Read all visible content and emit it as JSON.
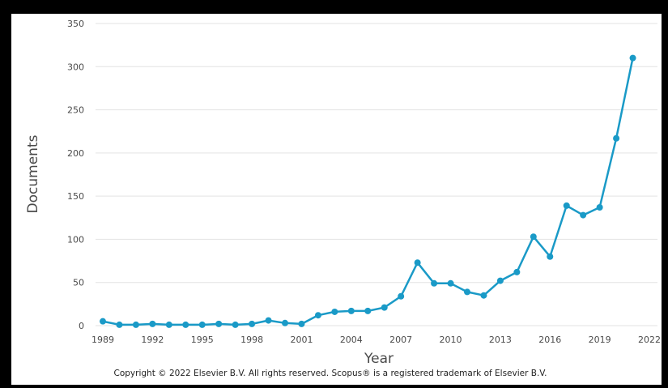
{
  "chart_data": {
    "type": "line",
    "title": "",
    "xlabel": "Year",
    "ylabel": "Documents",
    "xlim": [
      1989,
      2022
    ],
    "ylim": [
      0,
      350
    ],
    "x_ticks": [
      1989,
      1992,
      1995,
      1998,
      2001,
      2004,
      2007,
      2010,
      2013,
      2016,
      2019,
      2022
    ],
    "y_ticks": [
      0,
      50,
      100,
      150,
      200,
      250,
      300,
      350
    ],
    "grid": true,
    "legend": "none",
    "color": "#1a9ac7",
    "series": [
      {
        "x": [
          1989,
          1990,
          1991,
          1992,
          1993,
          1994,
          1995,
          1996,
          1997,
          1998,
          1999,
          2000,
          2001,
          2002,
          2003,
          2004,
          2005,
          2006,
          2007,
          2008,
          2009,
          2010,
          2011,
          2012,
          2013,
          2014,
          2015,
          2016,
          2017,
          2018,
          2019,
          2020,
          2021
        ],
        "values": [
          5,
          1,
          1,
          2,
          1,
          1,
          1,
          2,
          1,
          2,
          6,
          3,
          2,
          12,
          16,
          17,
          17,
          21,
          34,
          73,
          49,
          49,
          39,
          35,
          52,
          62,
          103,
          80,
          139,
          128,
          137,
          217,
          310
        ]
      }
    ]
  },
  "copyright": "Copyright © 2022 Elsevier B.V. All rights reserved. Scopus® is a registered trademark of Elsevier B.V."
}
